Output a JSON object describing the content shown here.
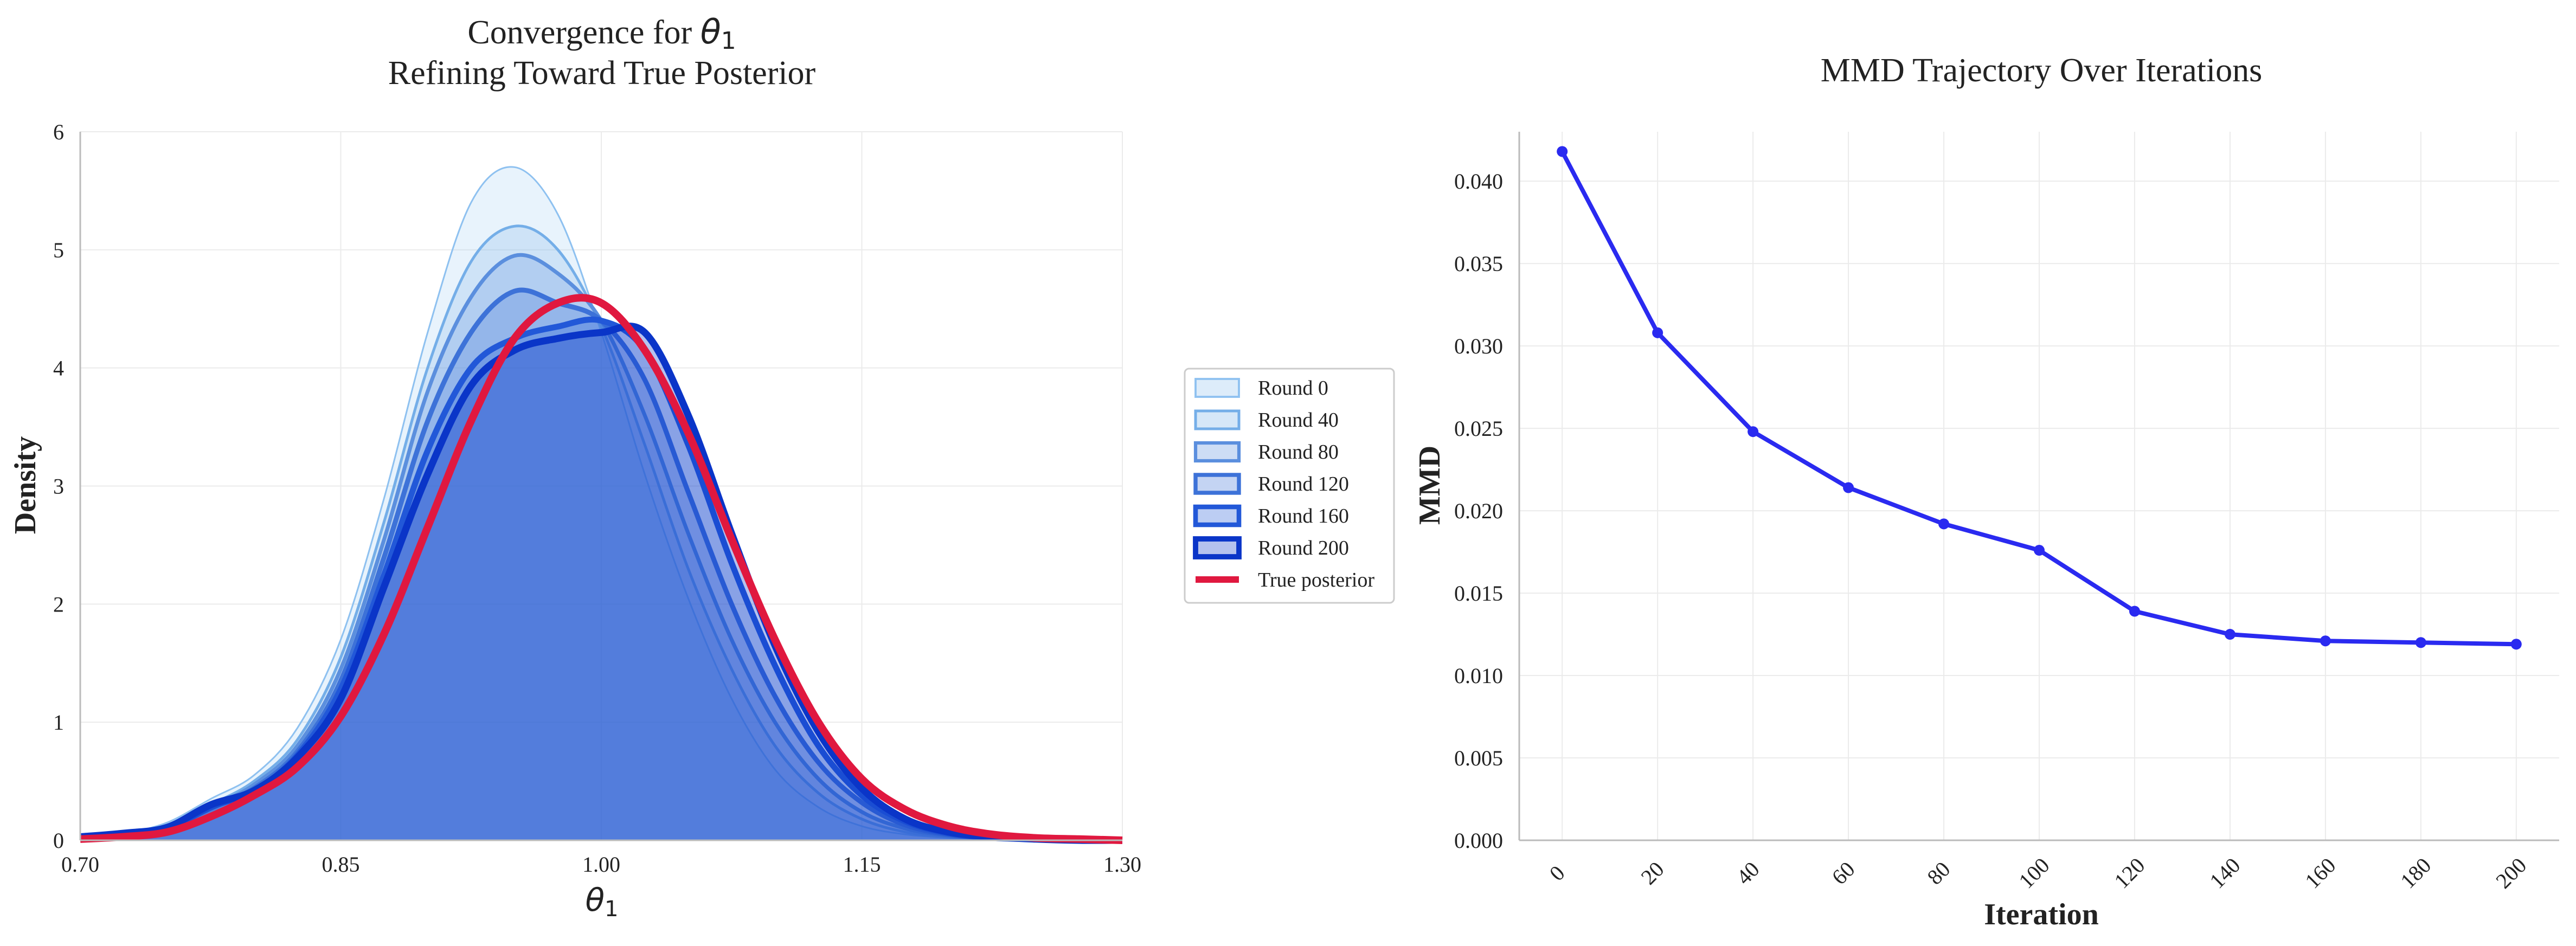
{
  "chart_data": [
    {
      "type": "area",
      "title": "Convergence for θ₁",
      "title_prefix": "Convergence for",
      "title_symbol": "θ",
      "title_subscript": "1",
      "subtitle": "Refining Toward True Posterior",
      "xlabel_symbol": "θ",
      "xlabel_subscript": "1",
      "ylabel": "Density",
      "xlim": [
        0.7,
        1.3
      ],
      "ylim": [
        0,
        6
      ],
      "xticks": [
        "0.70",
        "0.85",
        "1.00",
        "1.15",
        "1.30"
      ],
      "yticks": [
        "0",
        "1",
        "2",
        "3",
        "4",
        "5",
        "6"
      ],
      "grid": true,
      "legend_position": "outside right",
      "x": [
        0.7,
        0.725,
        0.75,
        0.775,
        0.8,
        0.825,
        0.85,
        0.875,
        0.9,
        0.925,
        0.95,
        0.975,
        1.0,
        1.025,
        1.05,
        1.075,
        1.1,
        1.125,
        1.15,
        1.175,
        1.2,
        1.225,
        1.25,
        1.275,
        1.3
      ],
      "series": [
        {
          "name": "Round 0",
          "color": "#8ec1f0",
          "fill_opacity": 0.2,
          "values": [
            0.02,
            0.06,
            0.15,
            0.35,
            0.55,
            0.95,
            1.7,
            2.9,
            4.3,
            5.4,
            5.7,
            5.3,
            4.3,
            3.1,
            2.05,
            1.2,
            0.6,
            0.28,
            0.12,
            0.05,
            0.02,
            0.01,
            0,
            0,
            0
          ]
        },
        {
          "name": "Round 40",
          "color": "#74aee8",
          "fill_opacity": 0.22,
          "values": [
            0.02,
            0.05,
            0.12,
            0.3,
            0.5,
            0.85,
            1.55,
            2.7,
            4.0,
            4.9,
            5.2,
            5.0,
            4.35,
            3.35,
            2.3,
            1.45,
            0.8,
            0.4,
            0.18,
            0.07,
            0.03,
            0.01,
            0,
            0,
            0
          ]
        },
        {
          "name": "Round 80",
          "color": "#5b8fde",
          "fill_opacity": 0.24,
          "values": [
            0.02,
            0.05,
            0.1,
            0.28,
            0.47,
            0.8,
            1.45,
            2.55,
            3.8,
            4.6,
            4.95,
            4.8,
            4.4,
            3.6,
            2.6,
            1.7,
            1.0,
            0.52,
            0.24,
            0.1,
            0.04,
            0.02,
            0,
            0,
            0
          ]
        },
        {
          "name": "Round 120",
          "color": "#3d72d8",
          "fill_opacity": 0.26,
          "values": [
            0.02,
            0.05,
            0.1,
            0.27,
            0.44,
            0.75,
            1.35,
            2.4,
            3.55,
            4.3,
            4.65,
            4.55,
            4.4,
            3.9,
            2.95,
            2.0,
            1.22,
            0.66,
            0.32,
            0.13,
            0.05,
            0.02,
            0.01,
            0,
            0
          ]
        },
        {
          "name": "Round 160",
          "color": "#2258d8",
          "fill_opacity": 0.28,
          "values": [
            0.02,
            0.05,
            0.1,
            0.28,
            0.42,
            0.72,
            1.28,
            2.25,
            3.3,
            4.0,
            4.25,
            4.35,
            4.4,
            4.15,
            3.35,
            2.35,
            1.48,
            0.8,
            0.38,
            0.16,
            0.06,
            0.02,
            0.01,
            0,
            0
          ]
        },
        {
          "name": "Round 200",
          "color": "#0a35c8",
          "fill_opacity": 0.3,
          "values": [
            0.03,
            0.06,
            0.11,
            0.3,
            0.42,
            0.7,
            1.2,
            2.15,
            3.1,
            3.85,
            4.15,
            4.25,
            4.3,
            4.3,
            3.6,
            2.6,
            1.65,
            0.92,
            0.44,
            0.18,
            0.07,
            0.03,
            0.01,
            0,
            0
          ]
        },
        {
          "name": "True posterior",
          "color": "#e0183f",
          "fill_opacity": 0,
          "values": [
            0.01,
            0.03,
            0.07,
            0.2,
            0.38,
            0.62,
            1.05,
            1.75,
            2.65,
            3.55,
            4.25,
            4.55,
            4.55,
            4.15,
            3.45,
            2.55,
            1.7,
            1.0,
            0.52,
            0.26,
            0.12,
            0.05,
            0.02,
            0.01,
            0
          ]
        }
      ]
    },
    {
      "type": "line",
      "title": "MMD Trajectory Over Iterations",
      "xlabel": "Iteration",
      "ylabel": "MMD",
      "x": [
        0,
        20,
        40,
        60,
        80,
        100,
        120,
        140,
        160,
        180,
        200
      ],
      "xticks": [
        "0",
        "20",
        "40",
        "60",
        "80",
        "100",
        "120",
        "140",
        "160",
        "180",
        "200"
      ],
      "yticks": [
        "0.000",
        "0.005",
        "0.010",
        "0.015",
        "0.020",
        "0.025",
        "0.030",
        "0.035",
        "0.040"
      ],
      "ylim": [
        0,
        0.043
      ],
      "grid": true,
      "series": [
        {
          "name": "",
          "color": "#2a2af0",
          "values": [
            0.0418,
            0.0308,
            0.0248,
            0.0214,
            0.0192,
            0.0176,
            0.0139,
            0.0125,
            0.0121,
            0.012,
            0.0119
          ]
        }
      ]
    }
  ]
}
